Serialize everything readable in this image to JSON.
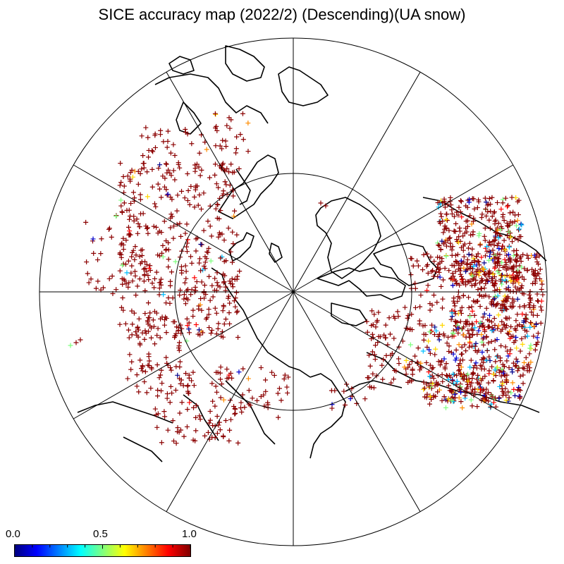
{
  "title": "SICE accuracy map (2022/2) (Descending)(UA snow)",
  "colorbar": {
    "labels": [
      "0.0",
      "0.5",
      "1.0"
    ],
    "min": 0.0,
    "max": 1.0,
    "colors": [
      "#00007f",
      "#0000ff",
      "#007fff",
      "#00ffff",
      "#7fff7f",
      "#ffff00",
      "#ff7f00",
      "#ff0000",
      "#7f0000"
    ]
  },
  "map": {
    "projection": "polar stereographic (north)",
    "graticule_circles": 2,
    "meridian_lines": 12,
    "marker": "+",
    "dominant_color": "#8b0000"
  }
}
